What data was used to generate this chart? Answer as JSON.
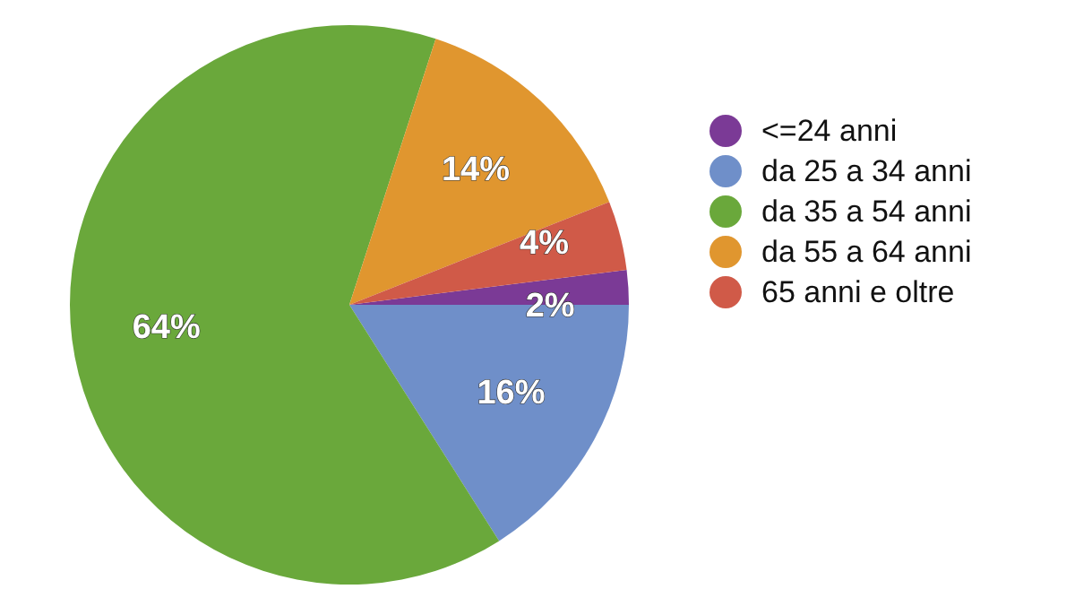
{
  "chart_data": {
    "type": "pie",
    "categories": [
      "<=24 anni",
      "da 25 a 34 anni",
      "da 35 a 54 anni",
      "da 55 a 64 anni",
      "65 anni e oltre"
    ],
    "values": [
      2,
      16,
      64,
      14,
      4
    ],
    "colors": [
      "#7b3a96",
      "#6f8fc9",
      "#6aa83b",
      "#e0962f",
      "#d05a48"
    ],
    "value_labels": [
      "2%",
      "16%",
      "64%",
      "14%",
      "4%"
    ],
    "legend": "right"
  }
}
